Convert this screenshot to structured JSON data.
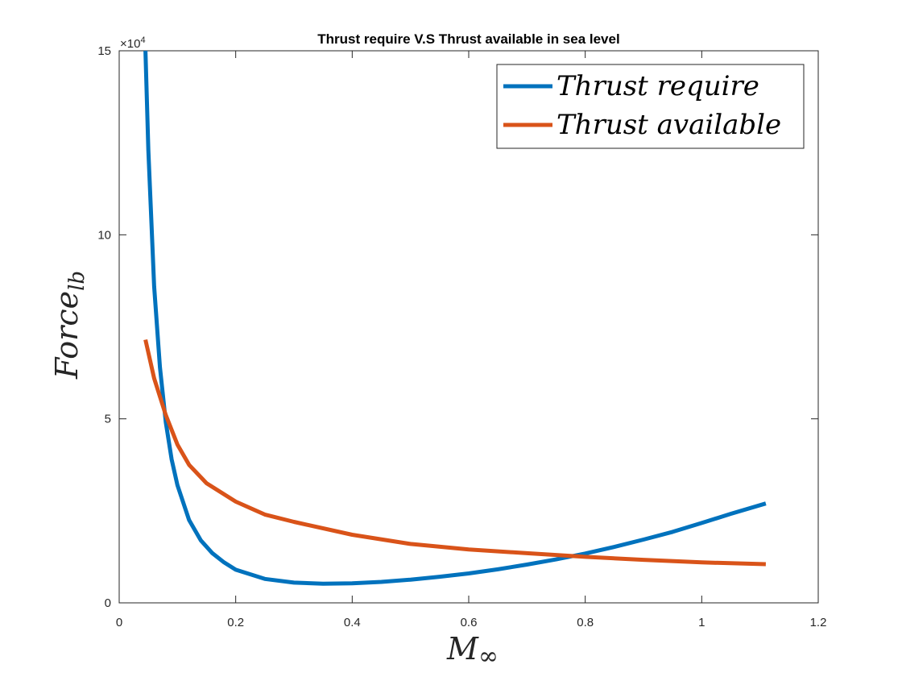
{
  "chart_data": {
    "type": "line",
    "title": "Thrust require V.S Thrust available in sea level",
    "xlabel": {
      "main": "M",
      "sub": "∞"
    },
    "ylabel": {
      "main": "Force",
      "sub": "lb"
    },
    "y_multiplier": {
      "base": "×10",
      "exponent": "4"
    },
    "xlim": [
      0,
      1.2
    ],
    "ylim": [
      0,
      15
    ],
    "xticks": [
      0,
      0.2,
      0.4,
      0.6,
      0.8,
      1,
      1.2
    ],
    "xtick_labels": [
      "0",
      "0.2",
      "0.4",
      "0.6",
      "0.8",
      "1",
      "1.2"
    ],
    "yticks": [
      0,
      5,
      10,
      15
    ],
    "ytick_labels": [
      "0",
      "5",
      "10",
      "15"
    ],
    "grid": false,
    "legend_position": "top-right",
    "series": [
      {
        "name": "Thrust require",
        "color": "#0072BD",
        "x": [
          0.045,
          0.05,
          0.06,
          0.07,
          0.08,
          0.09,
          0.1,
          0.12,
          0.14,
          0.16,
          0.18,
          0.2,
          0.25,
          0.3,
          0.35,
          0.4,
          0.45,
          0.5,
          0.55,
          0.6,
          0.65,
          0.7,
          0.75,
          0.8,
          0.85,
          0.9,
          0.95,
          1.0,
          1.05,
          1.11
        ],
        "y": [
          15.0,
          12.3,
          8.6,
          6.4,
          4.9,
          3.9,
          3.2,
          2.25,
          1.7,
          1.35,
          1.1,
          0.9,
          0.65,
          0.55,
          0.52,
          0.53,
          0.57,
          0.63,
          0.71,
          0.8,
          0.91,
          1.04,
          1.18,
          1.34,
          1.52,
          1.72,
          1.93,
          2.17,
          2.42,
          2.7
        ]
      },
      {
        "name": "Thrust available",
        "color": "#D95319",
        "x": [
          0.045,
          0.06,
          0.08,
          0.1,
          0.12,
          0.15,
          0.2,
          0.25,
          0.3,
          0.4,
          0.5,
          0.6,
          0.7,
          0.8,
          0.9,
          1.0,
          1.11
        ],
        "y": [
          7.15,
          6.1,
          5.1,
          4.3,
          3.75,
          3.25,
          2.75,
          2.4,
          2.2,
          1.85,
          1.6,
          1.45,
          1.35,
          1.25,
          1.17,
          1.1,
          1.05
        ]
      }
    ]
  }
}
